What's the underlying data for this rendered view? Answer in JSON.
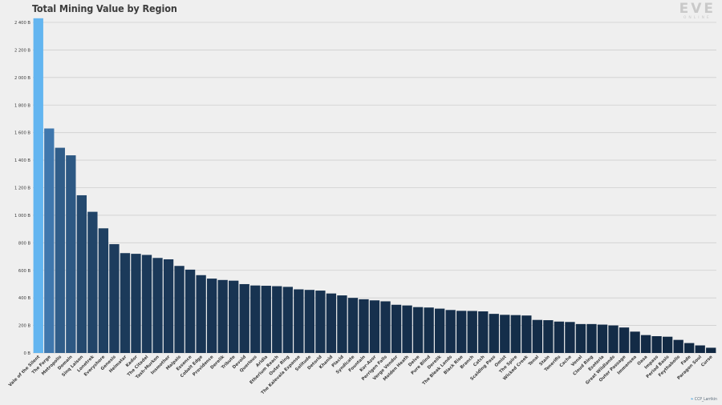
{
  "logo": {
    "mark": "EVE",
    "sub": "ONLINE"
  },
  "credit": {
    "bird": "❧",
    "handle": "CCP_Larrikin"
  },
  "colors": {
    "background": "#efefef",
    "grid": "#cfcfcf",
    "bar_top": "#63b5f0",
    "bar_high": "#3f77ad",
    "bar_low": "#112842"
  },
  "chart_data": {
    "type": "bar",
    "title": "Total Mining Value by Region",
    "xlabel": "",
    "ylabel": "",
    "ylim": [
      0,
      2400
    ],
    "yticks": [
      0,
      200,
      400,
      600,
      800,
      1000,
      1200,
      1400,
      1600,
      1800,
      2000,
      2200,
      2400
    ],
    "ytick_labels": [
      "0 B",
      "200 B",
      "400 B",
      "600 B",
      "800 B",
      "1 000 B",
      "1 200 B",
      "1 400 B",
      "1 600 B",
      "1 800 B",
      "2 000 B",
      "2 200 B",
      "2 400 B"
    ],
    "grid": true,
    "legend": "none",
    "categories": [
      "Vale of the Silent",
      "The Forge",
      "Metropolis",
      "Domain",
      "Sinq Laison",
      "Lonetrek",
      "Everyshore",
      "Genesis",
      "Heimatar",
      "Kador",
      "The Citadel",
      "Tash-Murkon",
      "Insmother",
      "Malpais",
      "Essence",
      "Cobalt Edge",
      "Providence",
      "Derelik",
      "Tribute",
      "Devoid",
      "Querious",
      "Aridia",
      "Etherium Reach",
      "Outer Ring",
      "The Kalevala Expanse",
      "Solitude",
      "Detorid",
      "Khanid",
      "Placid",
      "Syndicate",
      "Fountain",
      "Kor-Azor",
      "Perrigen Falls",
      "Verge Vendor",
      "Molden Heath",
      "Delve",
      "Pure Blind",
      "Derelik ",
      "The Bleak Lands",
      "Black Rise",
      "Branch",
      "Catch",
      "Scalding Pass",
      "Omist",
      "The Spire",
      "Wicked Creek",
      "Tenal",
      "Stain",
      "Tenerifis",
      "Cache",
      "Venal",
      "Cloud Ring",
      "Esoteria",
      "Great Wildlands",
      "Outer Passage",
      "Immensea",
      "Oasa",
      "Impass",
      "Period Basis",
      "Feythabolis",
      "Fade",
      "Paragon Soul",
      "Curse"
    ],
    "values": [
      2430,
      1630,
      1490,
      1435,
      1145,
      1025,
      905,
      790,
      725,
      720,
      712,
      690,
      680,
      632,
      605,
      565,
      540,
      530,
      525,
      500,
      490,
      488,
      485,
      480,
      462,
      458,
      453,
      432,
      418,
      400,
      390,
      382,
      375,
      350,
      345,
      333,
      330,
      322,
      312,
      306,
      305,
      302,
      284,
      277,
      275,
      272,
      240,
      238,
      228,
      225,
      210,
      210,
      206,
      200,
      185,
      155,
      130,
      122,
      118,
      95,
      72,
      55,
      38
    ]
  }
}
